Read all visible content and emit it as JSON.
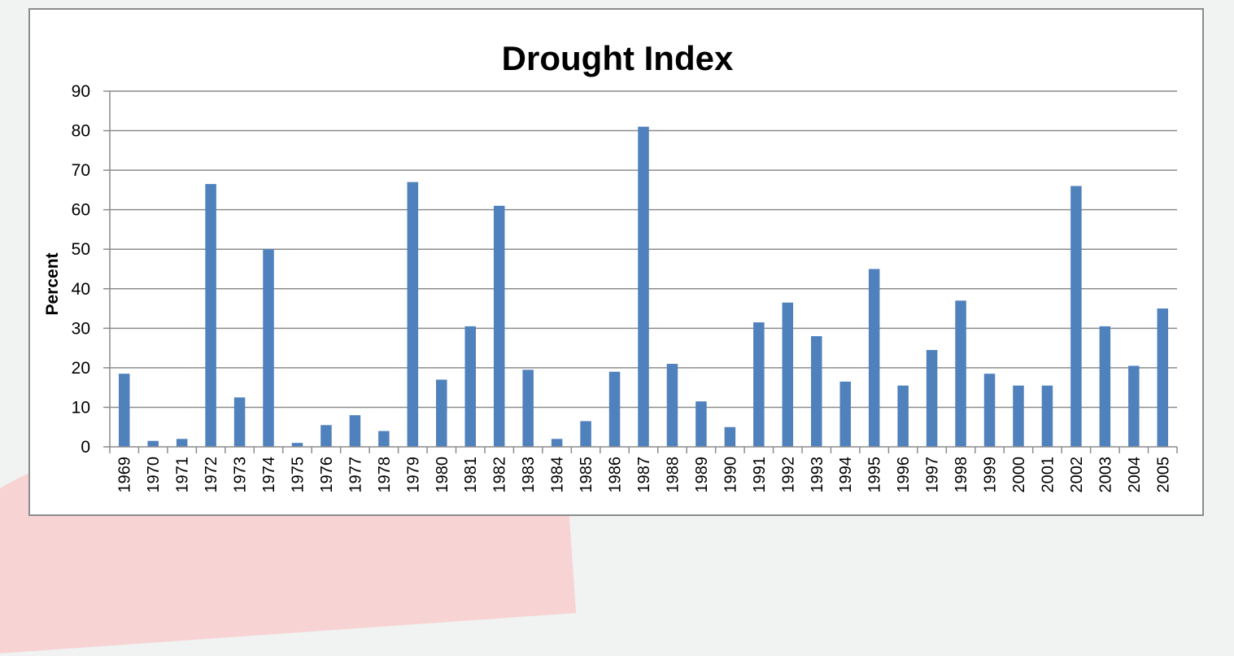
{
  "chart_data": {
    "type": "bar",
    "title": "Drought Index",
    "xlabel": "",
    "ylabel": "Percent",
    "ylim": [
      0,
      90
    ],
    "yticks": [
      0,
      10,
      20,
      30,
      40,
      50,
      60,
      70,
      80,
      90
    ],
    "grid": true,
    "legend": "none",
    "bar_color": "#4f81bd",
    "categories": [
      "1969",
      "1970",
      "1971",
      "1972",
      "1973",
      "1974",
      "1975",
      "1976",
      "1977",
      "1978",
      "1979",
      "1980",
      "1981",
      "1982",
      "1983",
      "1984",
      "1985",
      "1986",
      "1987",
      "1988",
      "1989",
      "1990",
      "1991",
      "1992",
      "1993",
      "1994",
      "1995",
      "1996",
      "1997",
      "1998",
      "1999",
      "2000",
      "2001",
      "2002",
      "2003",
      "2004",
      "2005"
    ],
    "values": [
      18.5,
      1.5,
      2,
      66.5,
      12.5,
      50,
      1,
      5.5,
      8,
      4,
      67,
      17,
      30.5,
      61,
      19.5,
      2,
      6.5,
      19,
      81,
      21,
      11.5,
      5,
      31.5,
      36.5,
      28,
      16.5,
      45,
      15.5,
      24.5,
      37,
      18.5,
      15.5,
      15.5,
      66,
      30.5,
      20.5,
      35
    ]
  }
}
